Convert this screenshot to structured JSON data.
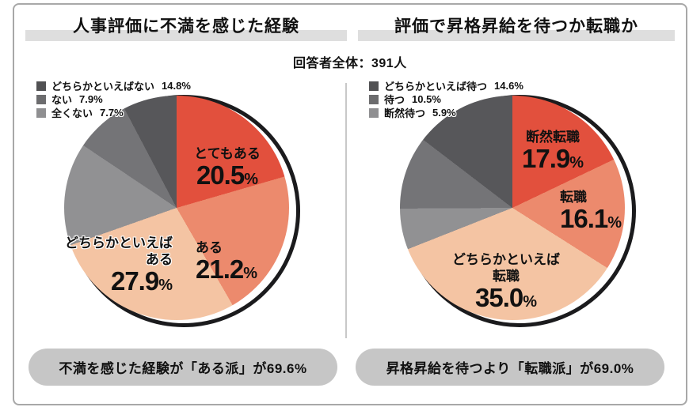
{
  "percent_sign": "%",
  "subtitle": "回答者全体：391人",
  "colors": {
    "red": "#e2503d",
    "salmon": "#ec8a6d",
    "peach": "#f4c4a3",
    "gray_light": "#919193",
    "gray_mid": "#747477",
    "gray_dark": "#57575a",
    "ring_black": "#1b1b1d",
    "title_highlight": "#dedede",
    "pill_bg": "#c6c6c6"
  },
  "charts": [
    {
      "title": "人事評価に不満を感じた経験",
      "legend": [
        {
          "label": "どちらかといえばない",
          "value": "14.8%",
          "swatch": "#515153"
        },
        {
          "label": "ない",
          "value": "7.9%",
          "swatch": "#6c6c6e"
        },
        {
          "label": "全くない",
          "value": "7.7%",
          "swatch": "#8f8f91"
        }
      ],
      "slices": [
        {
          "label": "とてもある",
          "value": 20.5,
          "color": "#e2503d"
        },
        {
          "label": "ある",
          "value": 21.2,
          "color": "#ec8a6d"
        },
        {
          "label": "どちらかといえばある",
          "value": 27.9,
          "color": "#f4c4a3"
        },
        {
          "label": "どちらかといえばない",
          "value": 14.8,
          "color": "#919193"
        },
        {
          "label": "ない",
          "value": 7.9,
          "color": "#747477"
        },
        {
          "label": "全くない",
          "value": 7.7,
          "color": "#57575a"
        }
      ],
      "callouts": {
        "c1": {
          "name": "とてもある",
          "pct": "20.5"
        },
        "c2": {
          "name": "ある",
          "pct": "21.2"
        },
        "c3": {
          "name_line1": "どちらかといえば",
          "name_line2": "ある",
          "pct": "27.9"
        }
      },
      "summary": "不満を感じた経験が「ある派」が69.6%"
    },
    {
      "title": "評価で昇格昇給を待つか転職か",
      "legend": [
        {
          "label": "どちらかといえば待つ",
          "value": "14.6%",
          "swatch": "#515153"
        },
        {
          "label": "待つ",
          "value": "10.5%",
          "swatch": "#6c6c6e"
        },
        {
          "label": "断然待つ",
          "value": "5.9%",
          "swatch": "#8f8f91"
        }
      ],
      "slices": [
        {
          "label": "断然転職",
          "value": 17.9,
          "color": "#e2503d"
        },
        {
          "label": "転職",
          "value": 16.1,
          "color": "#ec8a6d"
        },
        {
          "label": "どちらかといえば転職",
          "value": 35.0,
          "color": "#f4c4a3"
        },
        {
          "label": "断然待つ",
          "value": 5.9,
          "color": "#919193"
        },
        {
          "label": "待つ",
          "value": 10.5,
          "color": "#747477"
        },
        {
          "label": "どちらかといえば待つ",
          "value": 14.6,
          "color": "#57575a"
        }
      ],
      "callouts": {
        "c1": {
          "name": "断然転職",
          "pct": "17.9"
        },
        "c2": {
          "name": "転職",
          "pct": "16.1"
        },
        "c3": {
          "name_line1": "どちらかといえば",
          "name_line2": "転職",
          "pct": "35.0"
        }
      },
      "summary": "昇格昇給を待つより「転職派」が69.0%"
    }
  ],
  "chart_data": [
    {
      "type": "pie",
      "title": "人事評価に不満を感じた経験",
      "note": "回答者全体：391人",
      "labels": [
        "とてもある",
        "ある",
        "どちらかといえばある",
        "どちらかといえばない",
        "ない",
        "全くない"
      ],
      "values": [
        20.5,
        21.2,
        27.9,
        14.8,
        7.9,
        7.7
      ],
      "layout": "slices start at 12 o'clock, clockwise; gray slices annotated in legend, warm slices labeled on pie",
      "annotation": "不満を感じた経験が「ある派」が69.6%"
    },
    {
      "type": "pie",
      "title": "評価で昇格昇給を待つか転職か",
      "note": "回答者全体：391人",
      "labels": [
        "断然転職",
        "転職",
        "どちらかといえば転職",
        "断然待つ",
        "待つ",
        "どちらかといえば待つ"
      ],
      "values": [
        17.9,
        16.1,
        35.0,
        5.9,
        10.5,
        14.6
      ],
      "layout": "slices start at 12 o'clock, clockwise; gray slices annotated in legend, warm slices labeled on pie",
      "annotation": "昇格昇給を待つより「転職派」が69.0%"
    }
  ]
}
